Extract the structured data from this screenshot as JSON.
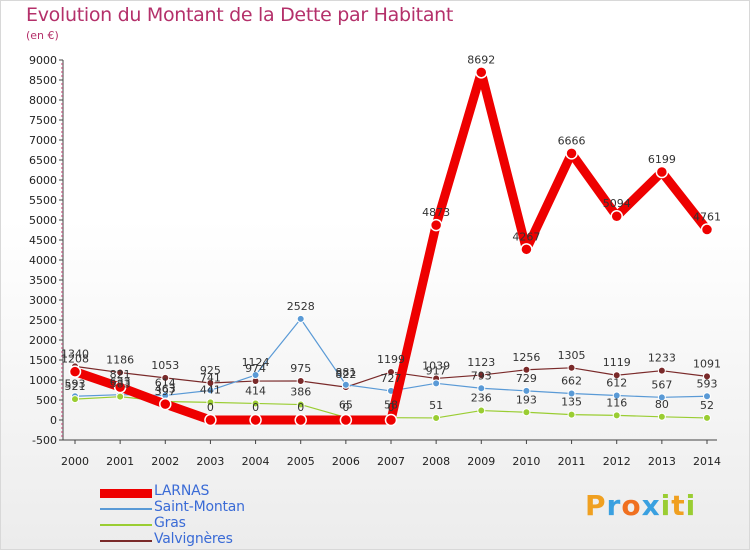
{
  "title": "Evolution du Montant de la Dette par Habitant",
  "subtitle": "(en €)",
  "brand": {
    "letters": [
      "P",
      "r",
      "o",
      "x",
      "i",
      "t",
      "i"
    ],
    "colors": [
      "#f0a020",
      "#3aa0e0",
      "#f07020",
      "#3aa0e0",
      "#9acd32",
      "#f0a020",
      "#9acd32"
    ]
  },
  "chart_data": {
    "type": "line",
    "title": "Evolution du Montant de la Dette par Habitant",
    "subtitle": "(en €)",
    "xlabel": "",
    "ylabel": "",
    "x": [
      "2000",
      "2001",
      "2002",
      "2003",
      "2004",
      "2005",
      "2006",
      "2007",
      "2008",
      "2009",
      "2010",
      "2011",
      "2012",
      "2013",
      "2014"
    ],
    "ylim": [
      -500,
      9000
    ],
    "yticks": [
      -500,
      0,
      500,
      1000,
      1500,
      2000,
      2500,
      3000,
      3500,
      4000,
      4500,
      5000,
      5500,
      6000,
      6500,
      7000,
      7500,
      8000,
      8500,
      9000
    ],
    "grid": false,
    "legend_position": "bottom-left",
    "series": [
      {
        "name": "LARNAS",
        "color": "#ee0000",
        "values": [
          1208,
          821,
          397,
          0,
          0,
          0,
          0,
          0,
          4873,
          8692,
          4267,
          6666,
          5094,
          6199,
          4761
        ],
        "labels": [
          "1208",
          "821",
          "397",
          "0",
          "0",
          "0",
          "0",
          "0",
          "4873",
          "8692",
          "4267",
          "6666",
          "5094",
          "6199",
          "4761"
        ]
      },
      {
        "name": "Saint-Montan",
        "color": "#5a9ad6",
        "values": [
          593,
          633,
          614,
          741,
          1124,
          2528,
          881,
          727,
          917,
          793,
          729,
          662,
          612,
          567,
          593
        ],
        "labels": [
          "593",
          "633",
          "614",
          "741",
          "1124",
          "2528",
          "881",
          "727",
          "917",
          "793",
          "729",
          "662",
          "612",
          "567",
          "593"
        ]
      },
      {
        "name": "Gras",
        "color": "#9acd32",
        "values": [
          521,
          583,
          463,
          441,
          414,
          386,
          65,
          58,
          51,
          236,
          193,
          135,
          116,
          80,
          52
        ],
        "labels": [
          "521",
          "583",
          "463",
          "441",
          "414",
          "386",
          "65",
          "58",
          "51",
          "236",
          "193",
          "135",
          "116",
          "80",
          "52"
        ]
      },
      {
        "name": "Valvignères",
        "color": "#7a2a2a",
        "values": [
          1340,
          1186,
          1053,
          925,
          974,
          975,
          822,
          1199,
          1039,
          1123,
          1256,
          1305,
          1119,
          1233,
          1091
        ],
        "labels": [
          "1340",
          "1186",
          "1053",
          "925",
          "974",
          "975",
          "822",
          "1199",
          "1039",
          "1123",
          "1256",
          "1305",
          "1119",
          "1233",
          "1091"
        ]
      }
    ]
  }
}
